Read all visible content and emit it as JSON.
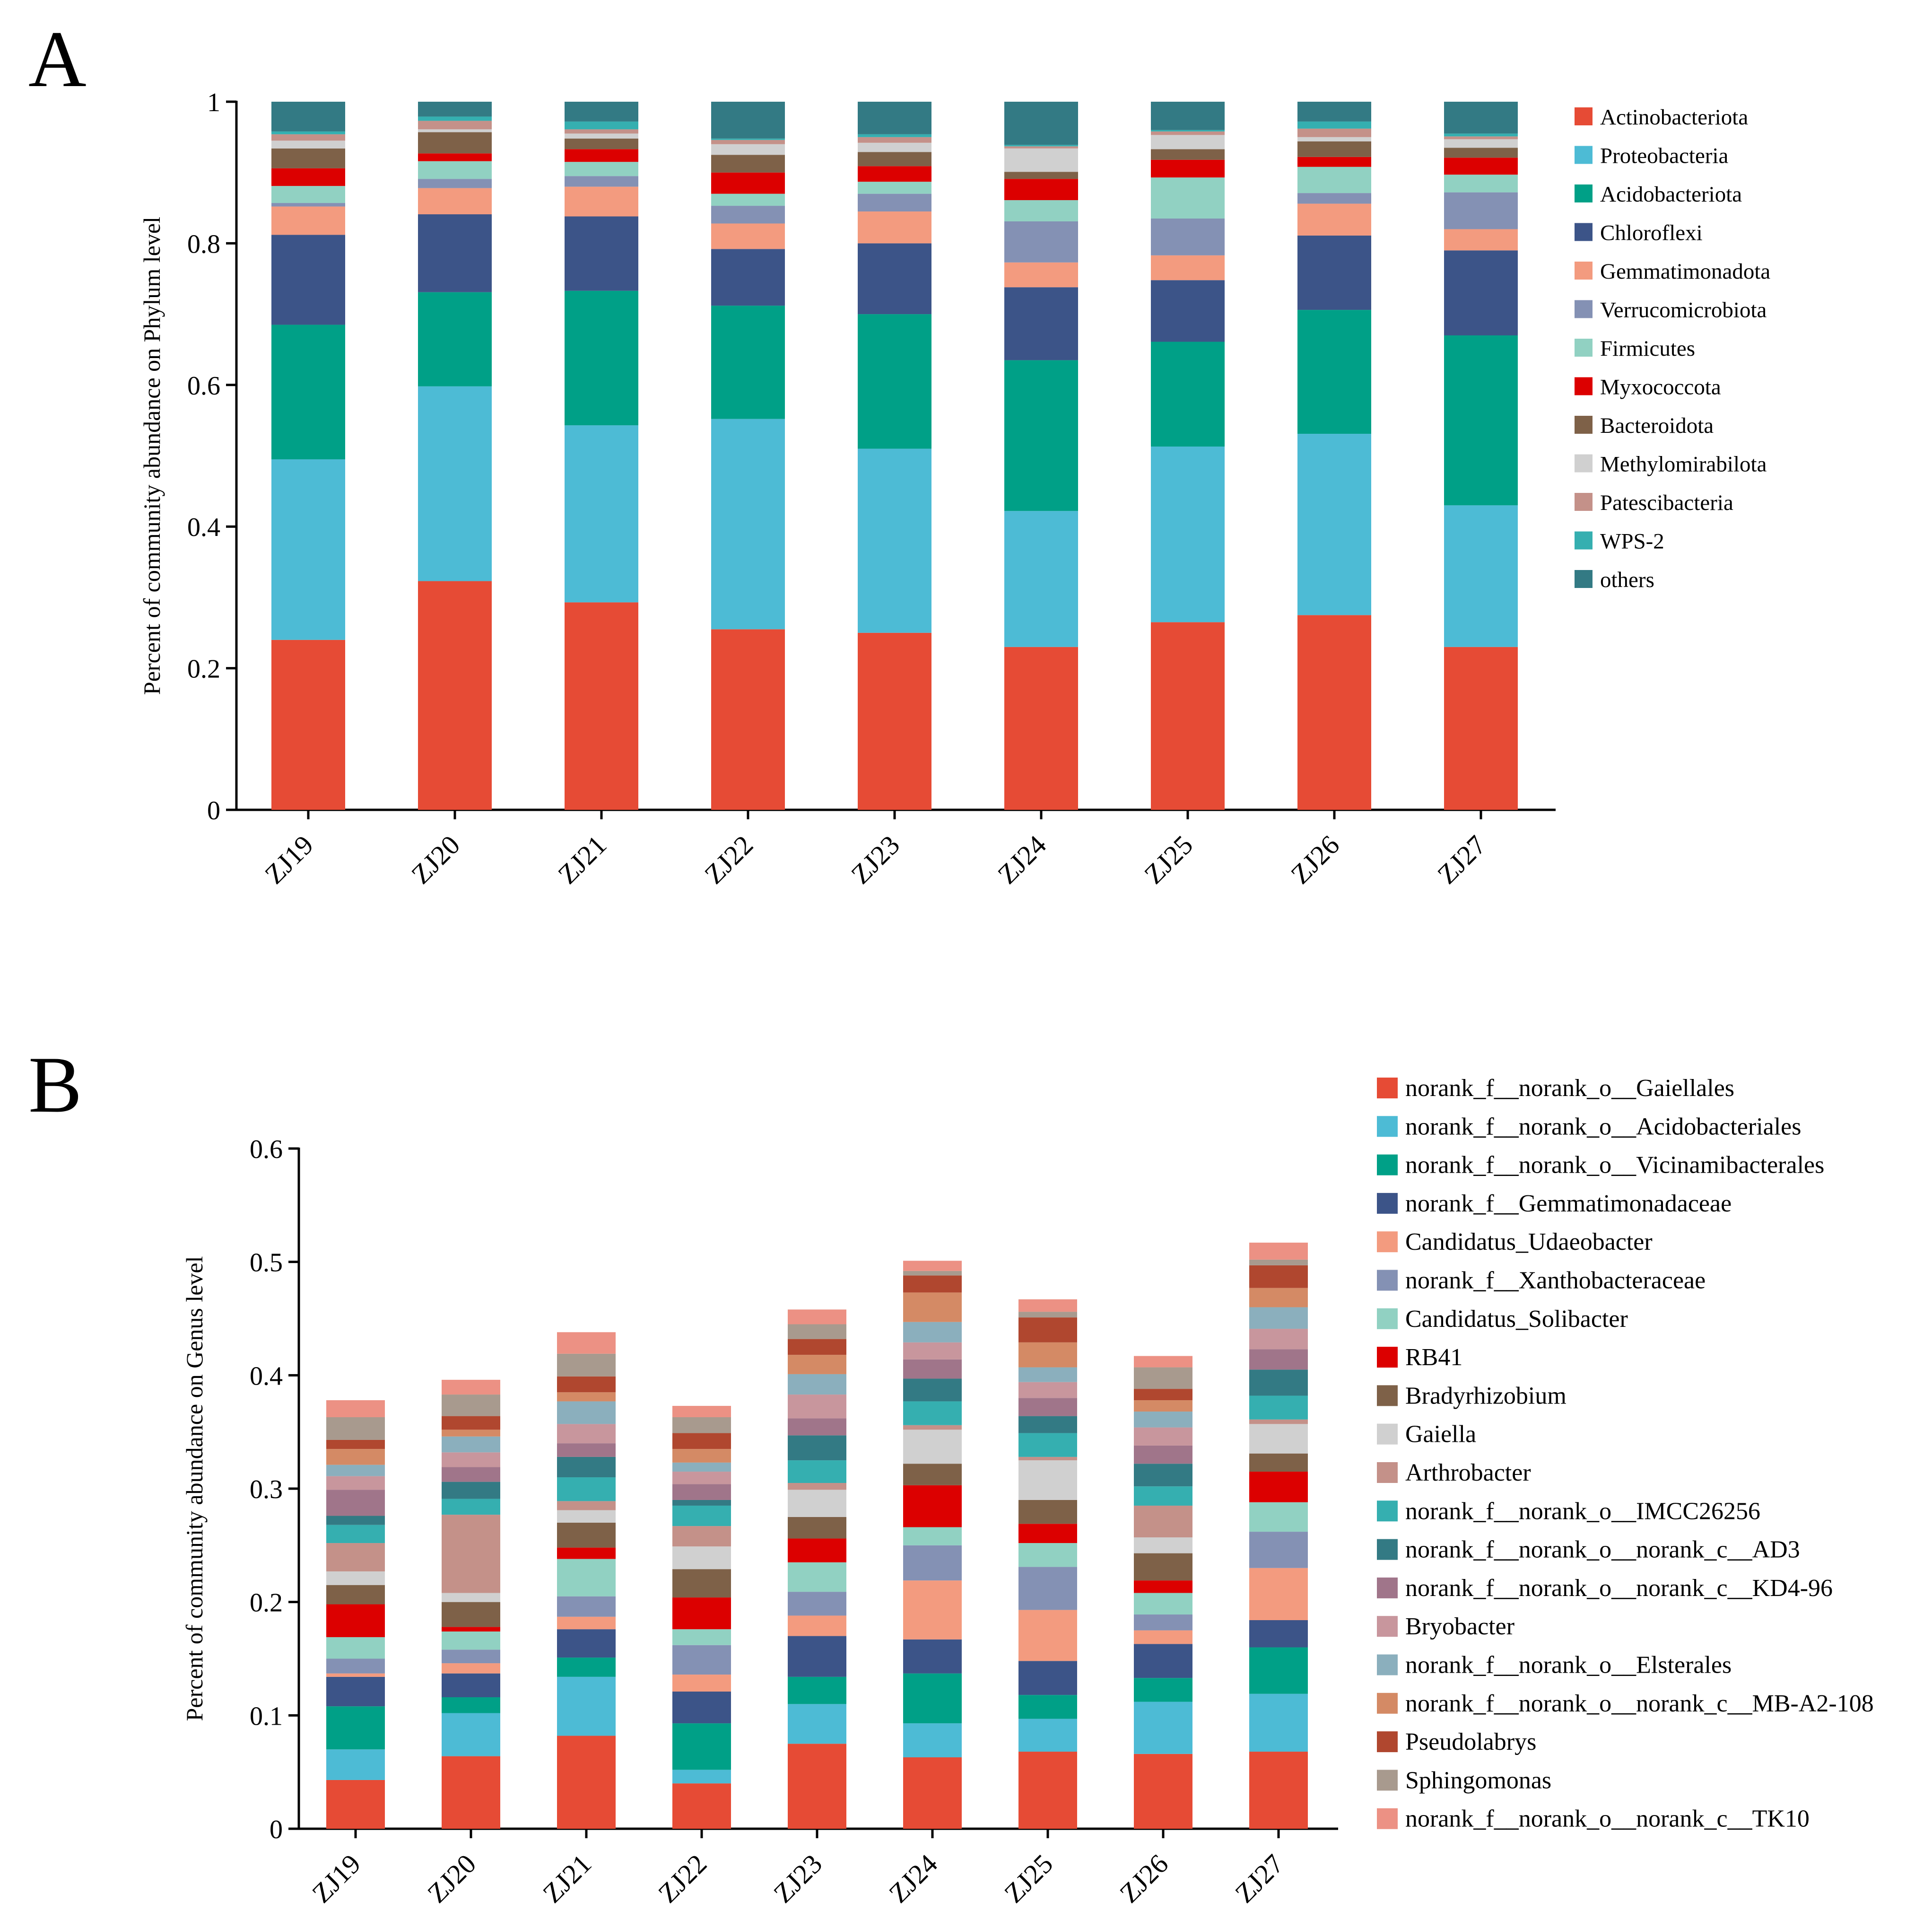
{
  "chart_data": [
    {
      "panel": "A",
      "type": "bar",
      "stacked": true,
      "ylabel": "Percent of community abundance on Phylum level",
      "ylim": [
        0,
        1
      ],
      "yticks": [
        0,
        0.2,
        0.4,
        0.6,
        0.8,
        1
      ],
      "ytick_labels": [
        "0",
        "0.2",
        "0.4",
        "0.6",
        "0.8",
        "1"
      ],
      "categories": [
        "ZJ19",
        "ZJ20",
        "ZJ21",
        "ZJ22",
        "ZJ23",
        "ZJ24",
        "ZJ25",
        "ZJ26",
        "ZJ27"
      ],
      "legend_position": "right",
      "series": [
        {
          "name": "Actinobacteriota",
          "color": "#E64B35",
          "values": [
            0.24,
            0.323,
            0.293,
            0.255,
            0.25,
            0.23,
            0.265,
            0.275,
            0.23
          ]
        },
        {
          "name": "Proteobacteria",
          "color": "#4DBBD5",
          "values": [
            0.255,
            0.275,
            0.25,
            0.297,
            0.26,
            0.192,
            0.248,
            0.256,
            0.2
          ]
        },
        {
          "name": "Acidobacteriota",
          "color": "#00A087",
          "values": [
            0.19,
            0.133,
            0.19,
            0.16,
            0.19,
            0.213,
            0.148,
            0.175,
            0.24
          ]
        },
        {
          "name": "Chloroflexi",
          "color": "#3C5488",
          "values": [
            0.127,
            0.11,
            0.105,
            0.08,
            0.1,
            0.103,
            0.087,
            0.105,
            0.12
          ]
        },
        {
          "name": "Gemmatimonadota",
          "color": "#F39B7F",
          "values": [
            0.04,
            0.037,
            0.042,
            0.036,
            0.045,
            0.035,
            0.035,
            0.045,
            0.03
          ]
        },
        {
          "name": "Verrucomicrobiota",
          "color": "#8491B4",
          "values": [
            0.005,
            0.013,
            0.015,
            0.025,
            0.025,
            0.058,
            0.052,
            0.015,
            0.052
          ]
        },
        {
          "name": "Firmicutes",
          "color": "#91D1C2",
          "values": [
            0.024,
            0.025,
            0.02,
            0.017,
            0.017,
            0.03,
            0.058,
            0.037,
            0.025
          ]
        },
        {
          "name": "Myxococcota",
          "color": "#DC0000",
          "values": [
            0.025,
            0.011,
            0.018,
            0.03,
            0.022,
            0.03,
            0.025,
            0.014,
            0.024
          ]
        },
        {
          "name": "Bacteroidota",
          "color": "#7E6148",
          "values": [
            0.028,
            0.03,
            0.015,
            0.025,
            0.02,
            0.01,
            0.015,
            0.022,
            0.014
          ]
        },
        {
          "name": "Methylomirabilota",
          "color": "#D0D0D0",
          "values": [
            0.011,
            0.004,
            0.007,
            0.015,
            0.013,
            0.033,
            0.02,
            0.006,
            0.012
          ]
        },
        {
          "name": "Patescibacteria",
          "color": "#C49189",
          "values": [
            0.009,
            0.012,
            0.006,
            0.006,
            0.008,
            0.003,
            0.005,
            0.012,
            0.004
          ]
        },
        {
          "name": "WPS-2",
          "color": "#35AFB0",
          "values": [
            0.004,
            0.006,
            0.011,
            0.002,
            0.004,
            0.002,
            0.002,
            0.01,
            0.004
          ]
        },
        {
          "name": "others",
          "color": "#337A84",
          "values": [
            0.042,
            0.021,
            0.028,
            0.052,
            0.046,
            0.061,
            0.04,
            0.028,
            0.045
          ]
        }
      ]
    },
    {
      "panel": "B",
      "type": "bar",
      "stacked": true,
      "ylabel": "Percent of community abundance on Genus level",
      "ylim": [
        0,
        0.6
      ],
      "yticks": [
        0,
        0.1,
        0.2,
        0.3,
        0.4,
        0.5,
        0.6
      ],
      "ytick_labels": [
        "0",
        "0.1",
        "0.2",
        "0.3",
        "0.4",
        "0.5",
        "0.6"
      ],
      "categories": [
        "ZJ19",
        "ZJ20",
        "ZJ21",
        "ZJ22",
        "ZJ23",
        "ZJ24",
        "ZJ25",
        "ZJ26",
        "ZJ27"
      ],
      "legend_position": "right",
      "series": [
        {
          "name": "norank_f__norank_o__Gaiellales",
          "color": "#E64B35",
          "values": [
            0.043,
            0.064,
            0.082,
            0.04,
            0.075,
            0.063,
            0.068,
            0.066,
            0.068
          ]
        },
        {
          "name": "norank_f__norank_o__Acidobacteriales",
          "color": "#4DBBD5",
          "values": [
            0.027,
            0.038,
            0.052,
            0.012,
            0.035,
            0.03,
            0.029,
            0.046,
            0.051
          ]
        },
        {
          "name": "norank_f__norank_o__Vicinamibacterales",
          "color": "#00A087",
          "values": [
            0.038,
            0.014,
            0.017,
            0.041,
            0.024,
            0.044,
            0.021,
            0.021,
            0.041
          ]
        },
        {
          "name": "norank_f__Gemmatimonadaceae",
          "color": "#3C5488",
          "values": [
            0.026,
            0.021,
            0.025,
            0.028,
            0.036,
            0.03,
            0.03,
            0.03,
            0.024
          ]
        },
        {
          "name": "Candidatus_Udaeobacter",
          "color": "#F39B7F",
          "values": [
            0.003,
            0.009,
            0.011,
            0.015,
            0.018,
            0.052,
            0.045,
            0.012,
            0.046
          ]
        },
        {
          "name": "norank_f__Xanthobacteraceae",
          "color": "#8491B4",
          "values": [
            0.013,
            0.012,
            0.018,
            0.026,
            0.021,
            0.031,
            0.038,
            0.014,
            0.032
          ]
        },
        {
          "name": "Candidatus_Solibacter",
          "color": "#91D1C2",
          "values": [
            0.019,
            0.016,
            0.033,
            0.014,
            0.026,
            0.016,
            0.021,
            0.019,
            0.026
          ]
        },
        {
          "name": "RB41",
          "color": "#DC0000",
          "values": [
            0.029,
            0.004,
            0.01,
            0.028,
            0.021,
            0.037,
            0.017,
            0.011,
            0.027
          ]
        },
        {
          "name": "Bradyrhizobium",
          "color": "#7E6148",
          "values": [
            0.017,
            0.022,
            0.022,
            0.025,
            0.019,
            0.019,
            0.021,
            0.024,
            0.016
          ]
        },
        {
          "name": "Gaiella",
          "color": "#D0D0D0",
          "values": [
            0.012,
            0.008,
            0.011,
            0.02,
            0.024,
            0.03,
            0.035,
            0.014,
            0.026
          ]
        },
        {
          "name": "Arthrobacter",
          "color": "#C49189",
          "values": [
            0.025,
            0.069,
            0.008,
            0.018,
            0.006,
            0.004,
            0.003,
            0.028,
            0.004
          ]
        },
        {
          "name": "norank_f__norank_o__IMCC26256",
          "color": "#35AFB0",
          "values": [
            0.016,
            0.014,
            0.021,
            0.018,
            0.02,
            0.021,
            0.021,
            0.017,
            0.021
          ]
        },
        {
          "name": "norank_f__norank_o__norank_c__AD3",
          "color": "#337A84",
          "values": [
            0.008,
            0.015,
            0.018,
            0.005,
            0.022,
            0.02,
            0.015,
            0.02,
            0.023
          ]
        },
        {
          "name": "norank_f__norank_o__norank_c__KD4-96",
          "color": "#A0758A",
          "values": [
            0.023,
            0.013,
            0.012,
            0.014,
            0.015,
            0.017,
            0.016,
            0.016,
            0.018
          ]
        },
        {
          "name": "Bryobacter",
          "color": "#C8969D",
          "values": [
            0.012,
            0.013,
            0.017,
            0.011,
            0.021,
            0.015,
            0.014,
            0.016,
            0.018
          ]
        },
        {
          "name": "norank_f__norank_o__Elsterales",
          "color": "#8BAFBD",
          "values": [
            0.01,
            0.014,
            0.02,
            0.008,
            0.018,
            0.018,
            0.013,
            0.014,
            0.019
          ]
        },
        {
          "name": "norank_f__norank_o__norank_c__MB-A2-108",
          "color": "#D48A65",
          "values": [
            0.014,
            0.006,
            0.008,
            0.012,
            0.017,
            0.026,
            0.022,
            0.01,
            0.017
          ]
        },
        {
          "name": "Pseudolabrys",
          "color": "#B0472F",
          "values": [
            0.008,
            0.012,
            0.014,
            0.014,
            0.014,
            0.015,
            0.022,
            0.01,
            0.02
          ]
        },
        {
          "name": "Sphingomonas",
          "color": "#A89A8E",
          "values": [
            0.02,
            0.019,
            0.02,
            0.014,
            0.013,
            0.004,
            0.005,
            0.019,
            0.005
          ]
        },
        {
          "name": "norank_f__norank_o__norank_c__TK10",
          "color": "#EC9184",
          "values": [
            0.015,
            0.013,
            0.019,
            0.01,
            0.013,
            0.009,
            0.011,
            0.01,
            0.015
          ]
        }
      ]
    }
  ],
  "panels": [
    {
      "label": "A"
    },
    {
      "label": "B"
    }
  ]
}
